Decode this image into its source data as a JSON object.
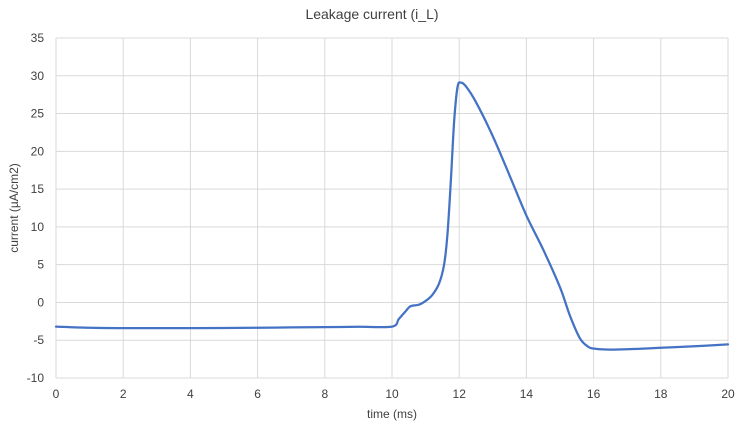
{
  "chart_data": {
    "type": "line",
    "title": "Leakage current (i_L)",
    "xlabel": "time (ms)",
    "ylabel": "current (µA/cm2)",
    "xlim": [
      0,
      20
    ],
    "ylim": [
      -10,
      35
    ],
    "x_ticks": [
      0,
      2,
      4,
      6,
      8,
      10,
      12,
      14,
      16,
      18,
      20
    ],
    "y_ticks": [
      -10,
      -5,
      0,
      5,
      10,
      15,
      20,
      25,
      30,
      35
    ],
    "y_tick_labels": [
      "-10",
      "-5",
      "0",
      "5",
      "10",
      "15",
      "20",
      "25",
      "30",
      "35"
    ],
    "grid": true,
    "legend": "none",
    "series": [
      {
        "color": "#4472c4",
        "x": [
          0,
          1,
          2,
          3,
          4,
          5,
          6,
          7,
          8,
          9,
          10,
          10.2,
          10.4,
          10.55,
          10.8,
          11.0,
          11.2,
          11.4,
          11.55,
          11.65,
          11.75,
          11.85,
          11.95,
          12.05,
          12.2,
          12.5,
          13.0,
          13.5,
          14.0,
          14.5,
          15.0,
          15.3,
          15.6,
          15.85,
          16.0,
          16.2,
          16.5,
          17,
          18,
          19,
          20
        ],
        "y": [
          -3.2,
          -3.35,
          -3.4,
          -3.4,
          -3.4,
          -3.38,
          -3.35,
          -3.3,
          -3.27,
          -3.22,
          -3.2,
          -2.2,
          -1.2,
          -0.5,
          -0.3,
          0.2,
          1.0,
          2.5,
          5.0,
          9.0,
          16.0,
          24.0,
          28.5,
          29.1,
          28.6,
          26.5,
          22.0,
          16.8,
          11.5,
          7.0,
          2.0,
          -1.8,
          -4.8,
          -5.9,
          -6.1,
          -6.2,
          -6.25,
          -6.2,
          -6.0,
          -5.8,
          -5.55
        ]
      }
    ]
  }
}
